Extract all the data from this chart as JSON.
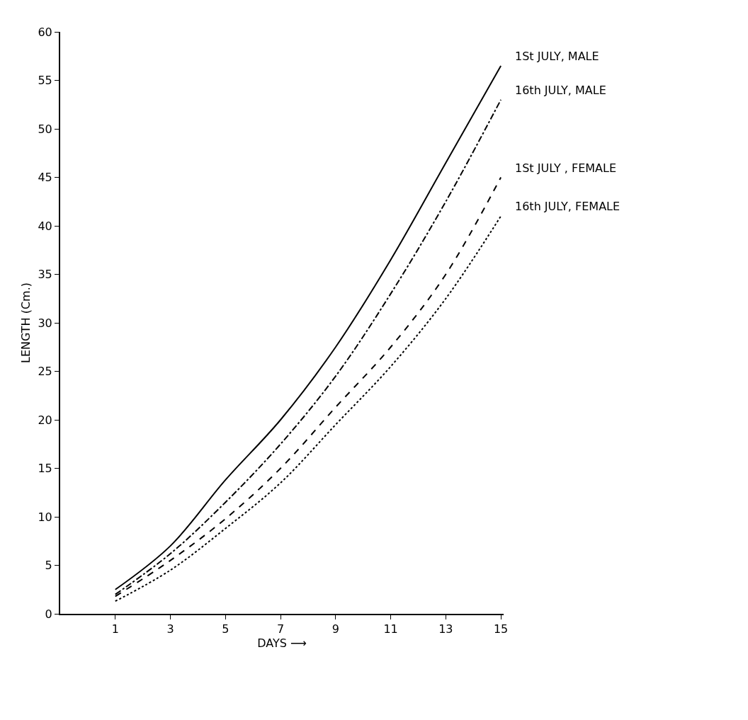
{
  "chart_data": {
    "type": "line",
    "xlabel": "DAYS ⟶",
    "ylabel": "LENGTH (Cm.)",
    "x": [
      1,
      3,
      5,
      7,
      9,
      11,
      13,
      15
    ],
    "xlim": [
      -1,
      15.1
    ],
    "xticks": [
      1,
      3,
      5,
      7,
      9,
      11,
      13,
      15
    ],
    "ylim": [
      0,
      60
    ],
    "yticks": [
      0,
      5,
      10,
      15,
      20,
      25,
      30,
      35,
      40,
      45,
      50,
      55,
      60
    ],
    "grid": false,
    "legend": false,
    "series": [
      {
        "name": "1St JULY, MALE",
        "color": "#000000",
        "line_style": "solid",
        "values": [
          2.5,
          7,
          13.8,
          20,
          27.5,
          36.5,
          46.5,
          56.5
        ]
      },
      {
        "name": "16th JULY, MALE",
        "color": "#000000",
        "line_style": "dashdot",
        "values": [
          2,
          6.2,
          11.5,
          17.5,
          24.5,
          33,
          42.5,
          53
        ]
      },
      {
        "name": "1St JULY , FEMALE",
        "color": "#000000",
        "line_style": "dashed",
        "values": [
          1.8,
          5.5,
          9.8,
          15,
          21.3,
          27.5,
          35,
          45
        ]
      },
      {
        "name": "16th JULY, FEMALE",
        "color": "#000000",
        "line_style": "dotted",
        "values": [
          1.3,
          4.5,
          8.8,
          13.5,
          19.5,
          25.5,
          32.5,
          41
        ]
      }
    ]
  }
}
